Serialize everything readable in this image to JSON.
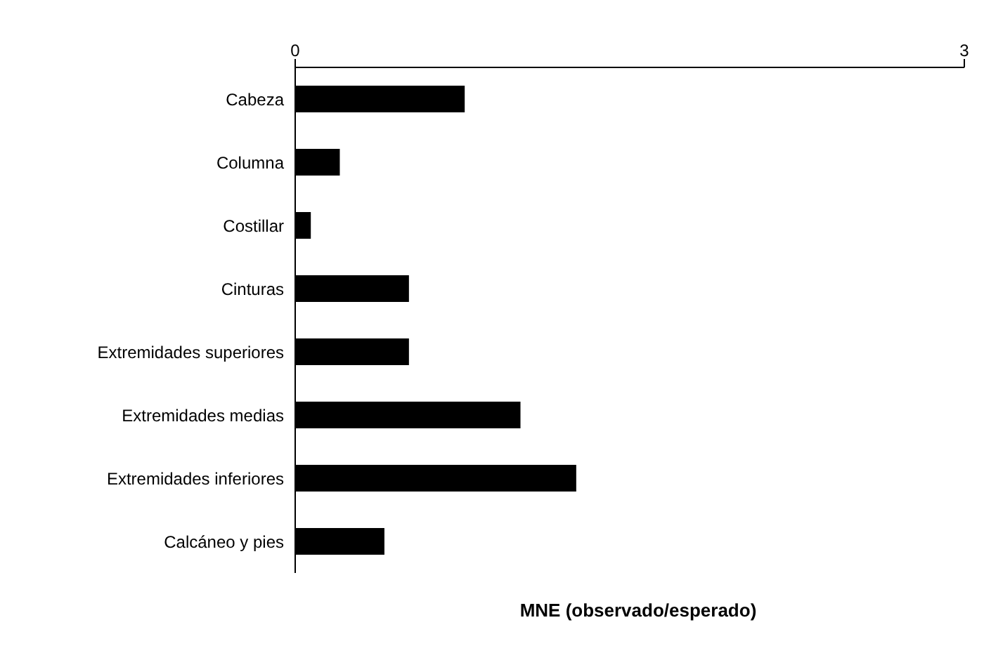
{
  "chart_data": {
    "type": "bar",
    "orientation": "horizontal",
    "xlabel": "MNE (observado/esperado)",
    "categories": [
      "Cabeza",
      "Columna",
      "Costillar",
      "Cinturas",
      "Extremidades superiores",
      "Extremidades medias",
      "Extremidades inferiores",
      "Calcáneo y pies"
    ],
    "values": [
      0.76,
      0.2,
      0.07,
      0.51,
      0.51,
      1.01,
      1.26,
      0.4
    ],
    "color": "#000000",
    "xlim": [
      0,
      3
    ],
    "xticks": [
      0,
      3
    ],
    "grid": false,
    "legend": false
  }
}
